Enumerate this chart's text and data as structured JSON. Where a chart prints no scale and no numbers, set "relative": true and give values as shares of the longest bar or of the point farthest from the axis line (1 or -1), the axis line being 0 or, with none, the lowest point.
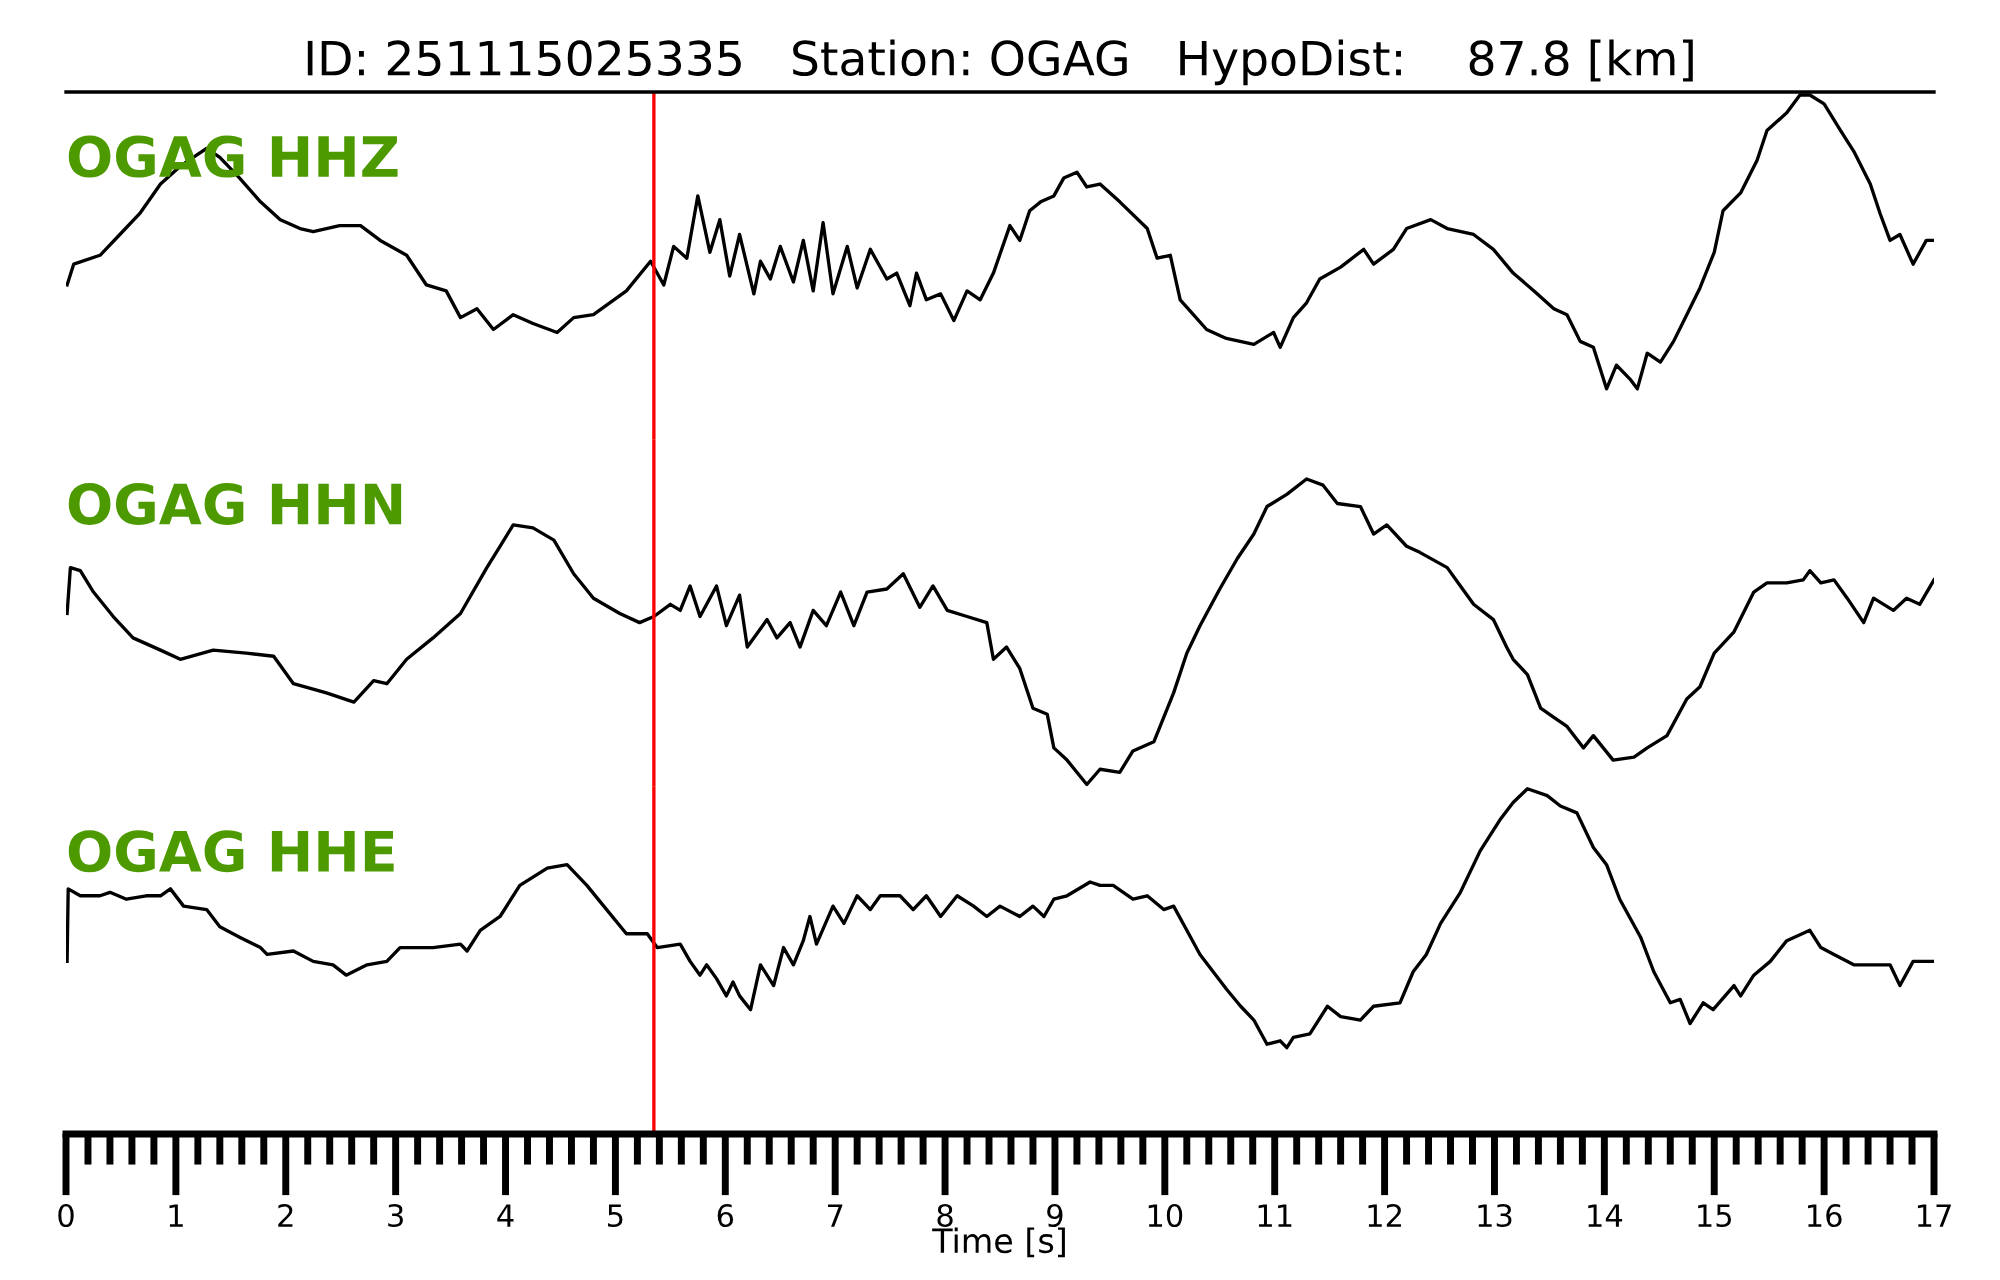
{
  "chart_data": [
    {
      "type": "line",
      "title": "ID: 251115025335   Station: OGAG   HypoDist:    87.8 [km]",
      "relative": true,
      "xlim": [
        0,
        17
      ],
      "tick_labels": false,
      "grid": false,
      "legend": false,
      "annotations": [
        "OGAG HHZ"
      ],
      "ref_lines": [
        {
          "axis": "x",
          "value": 5.35,
          "color": "#ff0000"
        }
      ],
      "series": [
        {
          "color": "#000000",
          "x": [
            0.01,
            0.07,
            0.31,
            0.49,
            0.67,
            0.86,
            1.04,
            1.28,
            1.4,
            1.58,
            1.77,
            1.95,
            2.13,
            2.25,
            2.49,
            2.68,
            2.86,
            3.1,
            3.28,
            3.46,
            3.59,
            3.74,
            3.89,
            4.07,
            4.25,
            4.47,
            4.62,
            4.8,
            5.1,
            5.32,
            5.44,
            5.53,
            5.65,
            5.75,
            5.86,
            5.95,
            6.04,
            6.13,
            6.26,
            6.32,
            6.41,
            6.5,
            6.62,
            6.71,
            6.8,
            6.89,
            6.98,
            7.11,
            7.2,
            7.32,
            7.47,
            7.56,
            7.68,
            7.74,
            7.83,
            7.96,
            8.08,
            8.2,
            8.32,
            8.44,
            8.59,
            8.68,
            8.77,
            8.87,
            8.99,
            9.08,
            9.2,
            9.29,
            9.41,
            9.59,
            9.84,
            9.93,
            10.05,
            10.14,
            10.26,
            10.38,
            10.56,
            10.81,
            10.99,
            11.05,
            11.17,
            11.29,
            11.41,
            11.6,
            11.81,
            11.9,
            12.08,
            12.2,
            12.42,
            12.57,
            12.81,
            12.99,
            13.17,
            13.36,
            13.54,
            13.66,
            13.78,
            13.9,
            14.02,
            14.11,
            14.24,
            14.3,
            14.39,
            14.51,
            14.63,
            14.75,
            14.87,
            15.0,
            15.08,
            15.24,
            15.39,
            15.48,
            15.66,
            15.78,
            15.87,
            16.0,
            16.15,
            16.27,
            16.42,
            16.51,
            16.6,
            16.69,
            16.81,
            16.93,
            17.0
          ],
          "values": [
            -0.65,
            -0.58,
            -0.55,
            -0.48,
            -0.41,
            -0.31,
            -0.25,
            -0.19,
            -0.22,
            -0.29,
            -0.37,
            -0.43,
            -0.46,
            -0.47,
            -0.45,
            -0.45,
            -0.5,
            -0.55,
            -0.65,
            -0.67,
            -0.76,
            -0.73,
            -0.8,
            -0.75,
            -0.78,
            -0.81,
            -0.76,
            -0.75,
            -0.67,
            -0.57,
            -0.65,
            -0.52,
            -0.56,
            -0.35,
            -0.54,
            -0.43,
            -0.62,
            -0.48,
            -0.68,
            -0.57,
            -0.63,
            -0.52,
            -0.64,
            -0.5,
            -0.67,
            -0.44,
            -0.68,
            -0.52,
            -0.66,
            -0.53,
            -0.63,
            -0.61,
            -0.72,
            -0.61,
            -0.7,
            -0.68,
            -0.77,
            -0.67,
            -0.7,
            -0.61,
            -0.45,
            -0.5,
            -0.4,
            -0.37,
            -0.35,
            -0.29,
            -0.27,
            -0.32,
            -0.31,
            -0.37,
            -0.46,
            -0.56,
            -0.55,
            -0.7,
            -0.75,
            -0.8,
            -0.83,
            -0.85,
            -0.81,
            -0.86,
            -0.76,
            -0.71,
            -0.63,
            -0.59,
            -0.53,
            -0.58,
            -0.53,
            -0.46,
            -0.43,
            -0.46,
            -0.48,
            -0.53,
            -0.61,
            -0.67,
            -0.73,
            -0.75,
            -0.84,
            -0.86,
            -1.0,
            -0.92,
            -0.97,
            -1.0,
            -0.88,
            -0.91,
            -0.84,
            -0.75,
            -0.66,
            -0.54,
            -0.4,
            -0.34,
            -0.23,
            -0.13,
            -0.07,
            -0.01,
            -0.01,
            -0.04,
            -0.13,
            -0.2,
            -0.31,
            -0.41,
            -0.5,
            -0.48,
            -0.58,
            -0.5,
            -0.5
          ]
        }
      ]
    },
    {
      "type": "line",
      "relative": true,
      "xlim": [
        0,
        17
      ],
      "tick_labels": false,
      "grid": false,
      "legend": false,
      "annotations": [
        "OGAG HHN"
      ],
      "ref_lines": [
        {
          "axis": "x",
          "value": 5.35,
          "color": "#ff0000"
        }
      ],
      "series": [
        {
          "color": "#000000",
          "x": [
            0.01,
            0.04,
            0.13,
            0.25,
            0.43,
            0.61,
            0.86,
            1.04,
            1.34,
            1.64,
            1.89,
            2.07,
            2.37,
            2.62,
            2.8,
            2.92,
            3.1,
            3.34,
            3.59,
            3.83,
            3.95,
            4.07,
            4.25,
            4.44,
            4.62,
            4.8,
            5.04,
            5.22,
            5.35,
            5.5,
            5.59,
            5.68,
            5.77,
            5.92,
            6.01,
            6.13,
            6.2,
            6.38,
            6.47,
            6.59,
            6.68,
            6.8,
            6.92,
            7.05,
            7.17,
            7.29,
            7.47,
            7.62,
            7.77,
            7.89,
            8.02,
            8.2,
            8.38,
            8.44,
            8.56,
            8.68,
            8.8,
            8.93,
            8.99,
            9.11,
            9.29,
            9.41,
            9.59,
            9.71,
            9.9,
            10.08,
            10.2,
            10.32,
            10.5,
            10.66,
            10.81,
            10.93,
            11.11,
            11.29,
            11.44,
            11.57,
            11.78,
            11.9,
            12.02,
            12.2,
            12.32,
            12.57,
            12.69,
            12.81,
            12.99,
            13.11,
            13.17,
            13.3,
            13.42,
            13.54,
            13.66,
            13.81,
            13.9,
            14.08,
            14.27,
            14.39,
            14.57,
            14.75,
            14.87,
            15.0,
            15.18,
            15.36,
            15.48,
            15.66,
            15.81,
            15.87,
            15.97,
            16.09,
            16.21,
            16.36,
            16.45,
            16.63,
            16.75,
            16.87,
            17.0
          ],
          "values": [
            0.56,
            0.71,
            0.7,
            0.63,
            0.55,
            0.48,
            0.44,
            0.41,
            0.44,
            0.43,
            0.42,
            0.33,
            0.3,
            0.27,
            0.34,
            0.33,
            0.41,
            0.48,
            0.56,
            0.71,
            0.78,
            0.85,
            0.84,
            0.8,
            0.69,
            0.61,
            0.56,
            0.53,
            0.55,
            0.59,
            0.57,
            0.65,
            0.55,
            0.65,
            0.52,
            0.62,
            0.45,
            0.54,
            0.48,
            0.53,
            0.45,
            0.57,
            0.52,
            0.63,
            0.52,
            0.63,
            0.64,
            0.69,
            0.58,
            0.65,
            0.57,
            0.55,
            0.53,
            0.41,
            0.45,
            0.38,
            0.25,
            0.23,
            0.12,
            0.08,
            0.0,
            0.05,
            0.04,
            0.11,
            0.14,
            0.3,
            0.43,
            0.52,
            0.64,
            0.74,
            0.82,
            0.91,
            0.95,
            1.0,
            0.98,
            0.92,
            0.91,
            0.82,
            0.85,
            0.78,
            0.76,
            0.71,
            0.65,
            0.59,
            0.54,
            0.45,
            0.41,
            0.36,
            0.25,
            0.22,
            0.19,
            0.12,
            0.16,
            0.08,
            0.09,
            0.12,
            0.16,
            0.28,
            0.32,
            0.43,
            0.5,
            0.63,
            0.66,
            0.66,
            0.67,
            0.7,
            0.66,
            0.67,
            0.61,
            0.53,
            0.61,
            0.57,
            0.61,
            0.59,
            0.67
          ]
        }
      ]
    },
    {
      "type": "line",
      "relative": true,
      "xlim": [
        0,
        17
      ],
      "xlabel": "Time [s]",
      "tick_labels": "x",
      "grid": false,
      "legend": false,
      "annotations": [
        "OGAG HHE"
      ],
      "ref_lines": [
        {
          "axis": "x",
          "value": 5.35,
          "color": "#ff0000"
        }
      ],
      "xticks": [
        0,
        {
          "value": 0.2,
          "label": null
        },
        {
          "value": 0.4,
          "label": null
        },
        {
          "value": 0.6,
          "label": null
        },
        {
          "value": 0.8,
          "label": null
        },
        1,
        {
          "value": 1.2,
          "label": null
        },
        {
          "value": 1.4,
          "label": null
        },
        {
          "value": 1.6,
          "label": null
        },
        {
          "value": 1.8,
          "label": null
        },
        2,
        {
          "value": 2.2,
          "label": null
        },
        {
          "value": 2.4,
          "label": null
        },
        {
          "value": 2.6,
          "label": null
        },
        {
          "value": 2.8,
          "label": null
        },
        3,
        {
          "value": 3.2,
          "label": null
        },
        {
          "value": 3.4,
          "label": null
        },
        {
          "value": 3.6,
          "label": null
        },
        {
          "value": 3.8,
          "label": null
        },
        4,
        {
          "value": 4.2,
          "label": null
        },
        {
          "value": 4.4,
          "label": null
        },
        {
          "value": 4.6,
          "label": null
        },
        {
          "value": 4.8,
          "label": null
        },
        5,
        {
          "value": 5.2,
          "label": null
        },
        {
          "value": 5.4,
          "label": null
        },
        {
          "value": 5.6,
          "label": null
        },
        {
          "value": 5.8,
          "label": null
        },
        6,
        {
          "value": 6.2,
          "label": null
        },
        {
          "value": 6.4,
          "label": null
        },
        {
          "value": 6.6,
          "label": null
        },
        {
          "value": 6.8,
          "label": null
        },
        7,
        {
          "value": 7.2,
          "label": null
        },
        {
          "value": 7.4,
          "label": null
        },
        {
          "value": 7.6,
          "label": null
        },
        {
          "value": 7.8,
          "label": null
        },
        8,
        {
          "value": 8.2,
          "label": null
        },
        {
          "value": 8.4,
          "label": null
        },
        {
          "value": 8.6,
          "label": null
        },
        {
          "value": 8.8,
          "label": null
        },
        9,
        {
          "value": 9.2,
          "label": null
        },
        {
          "value": 9.4,
          "label": null
        },
        {
          "value": 9.6,
          "label": null
        },
        {
          "value": 9.8,
          "label": null
        },
        10,
        {
          "value": 10.2,
          "label": null
        },
        {
          "value": 10.4,
          "label": null
        },
        {
          "value": 10.6,
          "label": null
        },
        {
          "value": 10.8,
          "label": null
        },
        11,
        {
          "value": 11.2,
          "label": null
        },
        {
          "value": 11.4,
          "label": null
        },
        {
          "value": 11.6,
          "label": null
        },
        {
          "value": 11.8,
          "label": null
        },
        12,
        {
          "value": 12.2,
          "label": null
        },
        {
          "value": 12.4,
          "label": null
        },
        {
          "value": 12.6,
          "label": null
        },
        {
          "value": 12.8,
          "label": null
        },
        13,
        {
          "value": 13.2,
          "label": null
        },
        {
          "value": 13.4,
          "label": null
        },
        {
          "value": 13.6,
          "label": null
        },
        {
          "value": 13.8,
          "label": null
        },
        14,
        {
          "value": 14.2,
          "label": null
        },
        {
          "value": 14.4,
          "label": null
        },
        {
          "value": 14.6,
          "label": null
        },
        {
          "value": 14.8,
          "label": null
        },
        15,
        {
          "value": 15.2,
          "label": null
        },
        {
          "value": 15.4,
          "label": null
        },
        {
          "value": 15.6,
          "label": null
        },
        {
          "value": 15.8,
          "label": null
        },
        16,
        {
          "value": 16.2,
          "label": null
        },
        {
          "value": 16.4,
          "label": null
        },
        {
          "value": 16.6,
          "label": null
        },
        {
          "value": 16.8,
          "label": null
        },
        17
      ],
      "series": [
        {
          "color": "#000000",
          "x": [
            0.01,
            0.02,
            0.13,
            0.31,
            0.4,
            0.55,
            0.73,
            0.86,
            0.95,
            1.07,
            1.28,
            1.4,
            1.58,
            1.77,
            1.83,
            2.07,
            2.25,
            2.43,
            2.55,
            2.74,
            2.92,
            3.04,
            3.34,
            3.59,
            3.65,
            3.77,
            3.95,
            4.13,
            4.38,
            4.56,
            4.74,
            4.92,
            5.1,
            5.29,
            5.38,
            5.59,
            5.68,
            5.77,
            5.83,
            5.92,
            6.01,
            6.07,
            6.13,
            6.23,
            6.32,
            6.44,
            6.53,
            6.62,
            6.71,
            6.77,
            6.83,
            6.98,
            7.08,
            7.2,
            7.32,
            7.41,
            7.59,
            7.71,
            7.83,
            7.96,
            8.11,
            8.26,
            8.38,
            8.5,
            8.68,
            8.8,
            8.9,
            8.99,
            9.11,
            9.32,
            9.41,
            9.53,
            9.71,
            9.84,
            9.99,
            10.08,
            10.2,
            10.32,
            10.44,
            10.56,
            10.69,
            10.81,
            10.93,
            11.05,
            11.11,
            11.17,
            11.32,
            11.48,
            11.6,
            11.78,
            11.9,
            12.14,
            12.26,
            12.38,
            12.51,
            12.69,
            12.87,
            13.05,
            13.17,
            13.3,
            13.48,
            13.6,
            13.75,
            13.9,
            14.02,
            14.14,
            14.33,
            14.45,
            14.6,
            14.69,
            14.78,
            14.9,
            14.99,
            15.18,
            15.24,
            15.36,
            15.51,
            15.66,
            15.87,
            15.97,
            16.09,
            16.27,
            16.45,
            16.6,
            16.69,
            16.81,
            17.0
          ],
          "values": [
            0.5,
            0.71,
            0.69,
            0.69,
            0.7,
            0.68,
            0.69,
            0.69,
            0.71,
            0.66,
            0.65,
            0.6,
            0.57,
            0.54,
            0.52,
            0.53,
            0.5,
            0.49,
            0.46,
            0.49,
            0.5,
            0.54,
            0.54,
            0.55,
            0.53,
            0.59,
            0.63,
            0.72,
            0.77,
            0.78,
            0.72,
            0.65,
            0.58,
            0.58,
            0.54,
            0.55,
            0.5,
            0.46,
            0.49,
            0.45,
            0.4,
            0.44,
            0.4,
            0.36,
            0.49,
            0.43,
            0.54,
            0.49,
            0.56,
            0.63,
            0.55,
            0.66,
            0.61,
            0.69,
            0.65,
            0.69,
            0.69,
            0.65,
            0.69,
            0.63,
            0.69,
            0.66,
            0.63,
            0.66,
            0.63,
            0.66,
            0.63,
            0.68,
            0.69,
            0.73,
            0.72,
            0.72,
            0.68,
            0.69,
            0.65,
            0.66,
            0.59,
            0.52,
            0.47,
            0.42,
            0.37,
            0.33,
            0.26,
            0.27,
            0.25,
            0.28,
            0.29,
            0.37,
            0.34,
            0.33,
            0.37,
            0.38,
            0.47,
            0.52,
            0.61,
            0.7,
            0.82,
            0.91,
            0.96,
            1.0,
            0.98,
            0.95,
            0.93,
            0.83,
            0.78,
            0.68,
            0.57,
            0.47,
            0.38,
            0.39,
            0.32,
            0.38,
            0.36,
            0.43,
            0.4,
            0.46,
            0.5,
            0.56,
            0.59,
            0.54,
            0.52,
            0.49,
            0.49,
            0.49,
            0.43,
            0.5,
            0.5
          ]
        }
      ]
    }
  ]
}
